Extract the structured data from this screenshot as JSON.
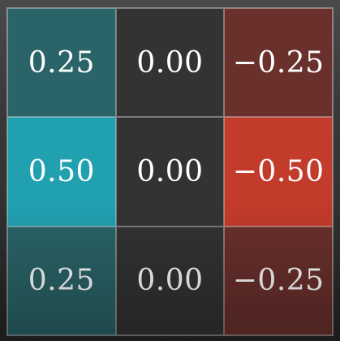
{
  "chart_data": {
    "type": "heatmap",
    "rows": 3,
    "cols": 3,
    "values": [
      [
        0.25,
        0.0,
        -0.25
      ],
      [
        0.5,
        0.0,
        -0.5
      ],
      [
        0.25,
        0.0,
        -0.25
      ]
    ],
    "labels": [
      [
        "0.25",
        "0.00",
        "−0.25"
      ],
      [
        "0.50",
        "0.00",
        "−0.50"
      ],
      [
        "0.25",
        "0.00",
        "−0.25"
      ]
    ],
    "colors": {
      "positive_max": "#21a0b0",
      "positive_mid": "#2a6468",
      "zero": "#333333",
      "negative_mid": "#6a302c",
      "negative_max": "#c23b2b"
    }
  }
}
